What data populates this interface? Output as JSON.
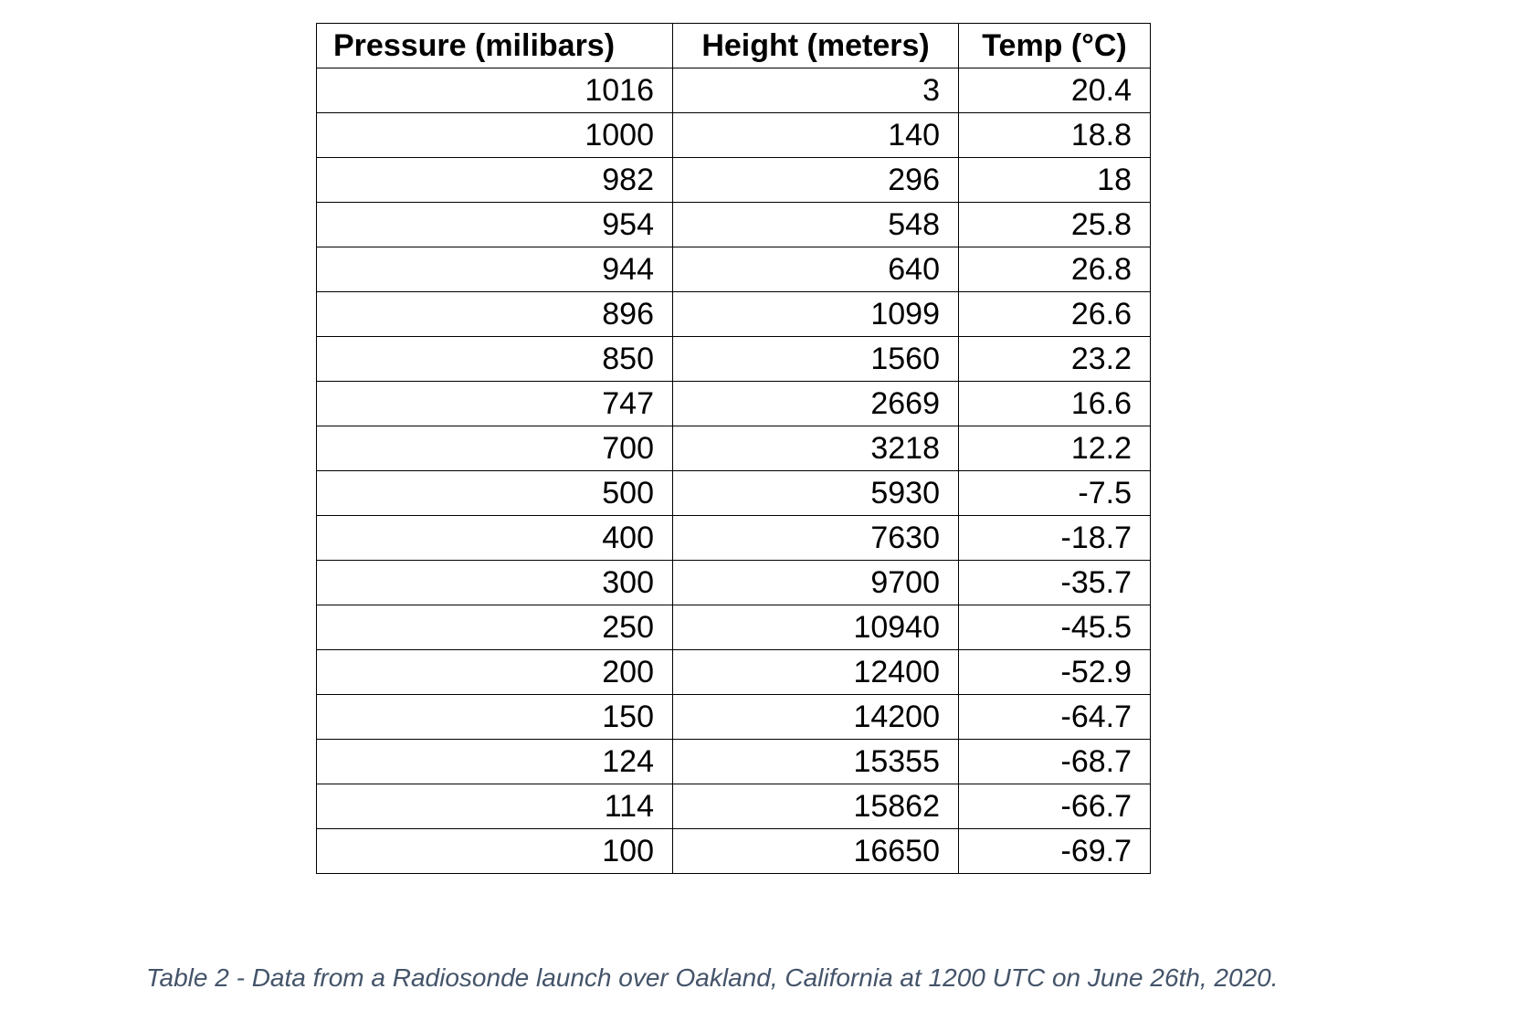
{
  "table": {
    "headers": [
      "Pressure (milibars)",
      "Height (meters)",
      "Temp (°C)"
    ],
    "rows": [
      [
        "1016",
        "3",
        "20.4"
      ],
      [
        "1000",
        "140",
        "18.8"
      ],
      [
        "982",
        "296",
        "18"
      ],
      [
        "954",
        "548",
        "25.8"
      ],
      [
        "944",
        "640",
        "26.8"
      ],
      [
        "896",
        "1099",
        "26.6"
      ],
      [
        "850",
        "1560",
        "23.2"
      ],
      [
        "747",
        "2669",
        "16.6"
      ],
      [
        "700",
        "3218",
        "12.2"
      ],
      [
        "500",
        "5930",
        "-7.5"
      ],
      [
        "400",
        "7630",
        "-18.7"
      ],
      [
        "300",
        "9700",
        "-35.7"
      ],
      [
        "250",
        "10940",
        "-45.5"
      ],
      [
        "200",
        "12400",
        "-52.9"
      ],
      [
        "150",
        "14200",
        "-64.7"
      ],
      [
        "124",
        "15355",
        "-68.7"
      ],
      [
        "114",
        "15862",
        "-66.7"
      ],
      [
        "100",
        "16650",
        "-69.7"
      ]
    ]
  },
  "caption": "Table 2 - Data from a Radiosonde launch over Oakland, California at 1200 UTC on June 26th, 2020.",
  "colors": {
    "caption": "#44546a",
    "border": "#000000",
    "text": "#000000"
  }
}
